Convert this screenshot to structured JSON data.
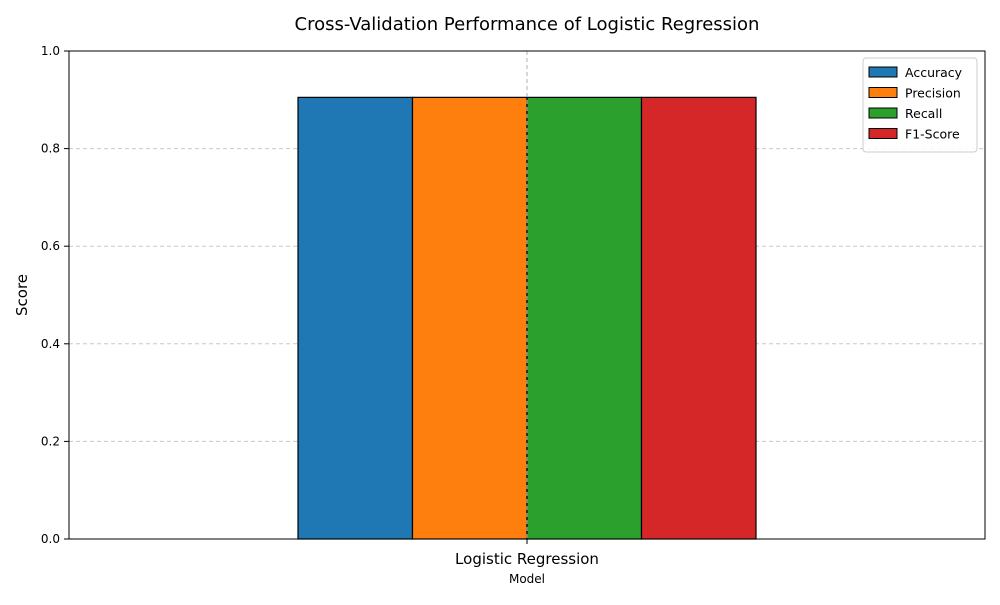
{
  "chart_data": {
    "type": "bar",
    "title": "Cross-Validation Performance of Logistic Regression",
    "xlabel": "Model",
    "ylabel": "Score",
    "categories": [
      "Logistic Regression"
    ],
    "series": [
      {
        "name": "Accuracy",
        "values": [
          0.905
        ],
        "color": "#1f77b4"
      },
      {
        "name": "Precision",
        "values": [
          0.905
        ],
        "color": "#ff7f0e"
      },
      {
        "name": "Recall",
        "values": [
          0.905
        ],
        "color": "#2ca02c"
      },
      {
        "name": "F1-Score",
        "values": [
          0.905
        ],
        "color": "#d62728"
      }
    ],
    "ylim": [
      0,
      1.0
    ],
    "yticks": [
      "0.0",
      "0.2",
      "0.4",
      "0.6",
      "0.8",
      "1.0"
    ],
    "grid": true,
    "legend_position": "top-right"
  }
}
